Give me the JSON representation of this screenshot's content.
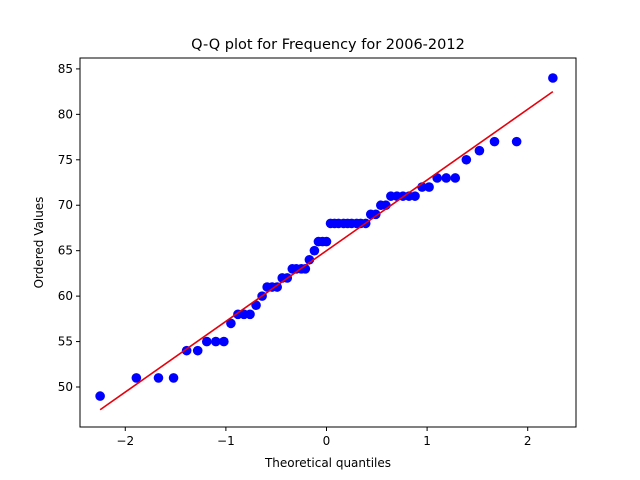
{
  "chart_data": {
    "type": "scatter",
    "title": "Q-Q plot for Frequency for 2006-2012",
    "xlabel": "Theoretical quantiles",
    "ylabel": "Ordered Values",
    "xlim": [
      -2.45,
      2.48
    ],
    "ylim": [
      45.6,
      86.2
    ],
    "xticks": [
      -2,
      -1,
      0,
      1,
      2
    ],
    "xtick_labels": [
      "−2",
      "−1",
      "0",
      "1",
      "2"
    ],
    "yticks": [
      50,
      55,
      60,
      65,
      70,
      75,
      80,
      85
    ],
    "ytick_labels": [
      "50",
      "55",
      "60",
      "65",
      "70",
      "75",
      "80",
      "85"
    ],
    "grid": false,
    "legend": "none",
    "colors": {
      "points": "#0000ff",
      "fit_line": "#e8000b"
    },
    "series": [
      {
        "type": "scatter",
        "points": [
          [
            -2.25,
            49
          ],
          [
            -1.89,
            51
          ],
          [
            -1.67,
            51
          ],
          [
            -1.52,
            51
          ],
          [
            -1.39,
            54
          ],
          [
            -1.28,
            54
          ],
          [
            -1.19,
            55
          ],
          [
            -1.1,
            55
          ],
          [
            -1.02,
            55
          ],
          [
            -0.95,
            57
          ],
          [
            -0.88,
            58
          ],
          [
            -0.82,
            58
          ],
          [
            -0.76,
            58
          ],
          [
            -0.7,
            59
          ],
          [
            -0.64,
            60
          ],
          [
            -0.59,
            61
          ],
          [
            -0.54,
            61
          ],
          [
            -0.49,
            61
          ],
          [
            -0.44,
            62
          ],
          [
            -0.39,
            62
          ],
          [
            -0.34,
            63
          ],
          [
            -0.3,
            63
          ],
          [
            -0.25,
            63
          ],
          [
            -0.21,
            63
          ],
          [
            -0.17,
            64
          ],
          [
            -0.12,
            65
          ],
          [
            -0.08,
            66
          ],
          [
            -0.04,
            66
          ],
          [
            0.0,
            66
          ],
          [
            0.04,
            68
          ],
          [
            0.08,
            68
          ],
          [
            0.12,
            68
          ],
          [
            0.17,
            68
          ],
          [
            0.21,
            68
          ],
          [
            0.25,
            68
          ],
          [
            0.3,
            68
          ],
          [
            0.34,
            68
          ],
          [
            0.39,
            68
          ],
          [
            0.44,
            69
          ],
          [
            0.49,
            69
          ],
          [
            0.54,
            70
          ],
          [
            0.59,
            70
          ],
          [
            0.64,
            71
          ],
          [
            0.7,
            71
          ],
          [
            0.76,
            71
          ],
          [
            0.82,
            71
          ],
          [
            0.88,
            71
          ],
          [
            0.95,
            72
          ],
          [
            1.02,
            72
          ],
          [
            1.1,
            73
          ],
          [
            1.19,
            73
          ],
          [
            1.28,
            73
          ],
          [
            1.39,
            75
          ],
          [
            1.52,
            76
          ],
          [
            1.67,
            77
          ],
          [
            1.89,
            77
          ],
          [
            2.25,
            84
          ]
        ]
      },
      {
        "type": "line",
        "points": [
          [
            -2.25,
            47.5
          ],
          [
            2.25,
            82.5
          ]
        ]
      }
    ]
  }
}
